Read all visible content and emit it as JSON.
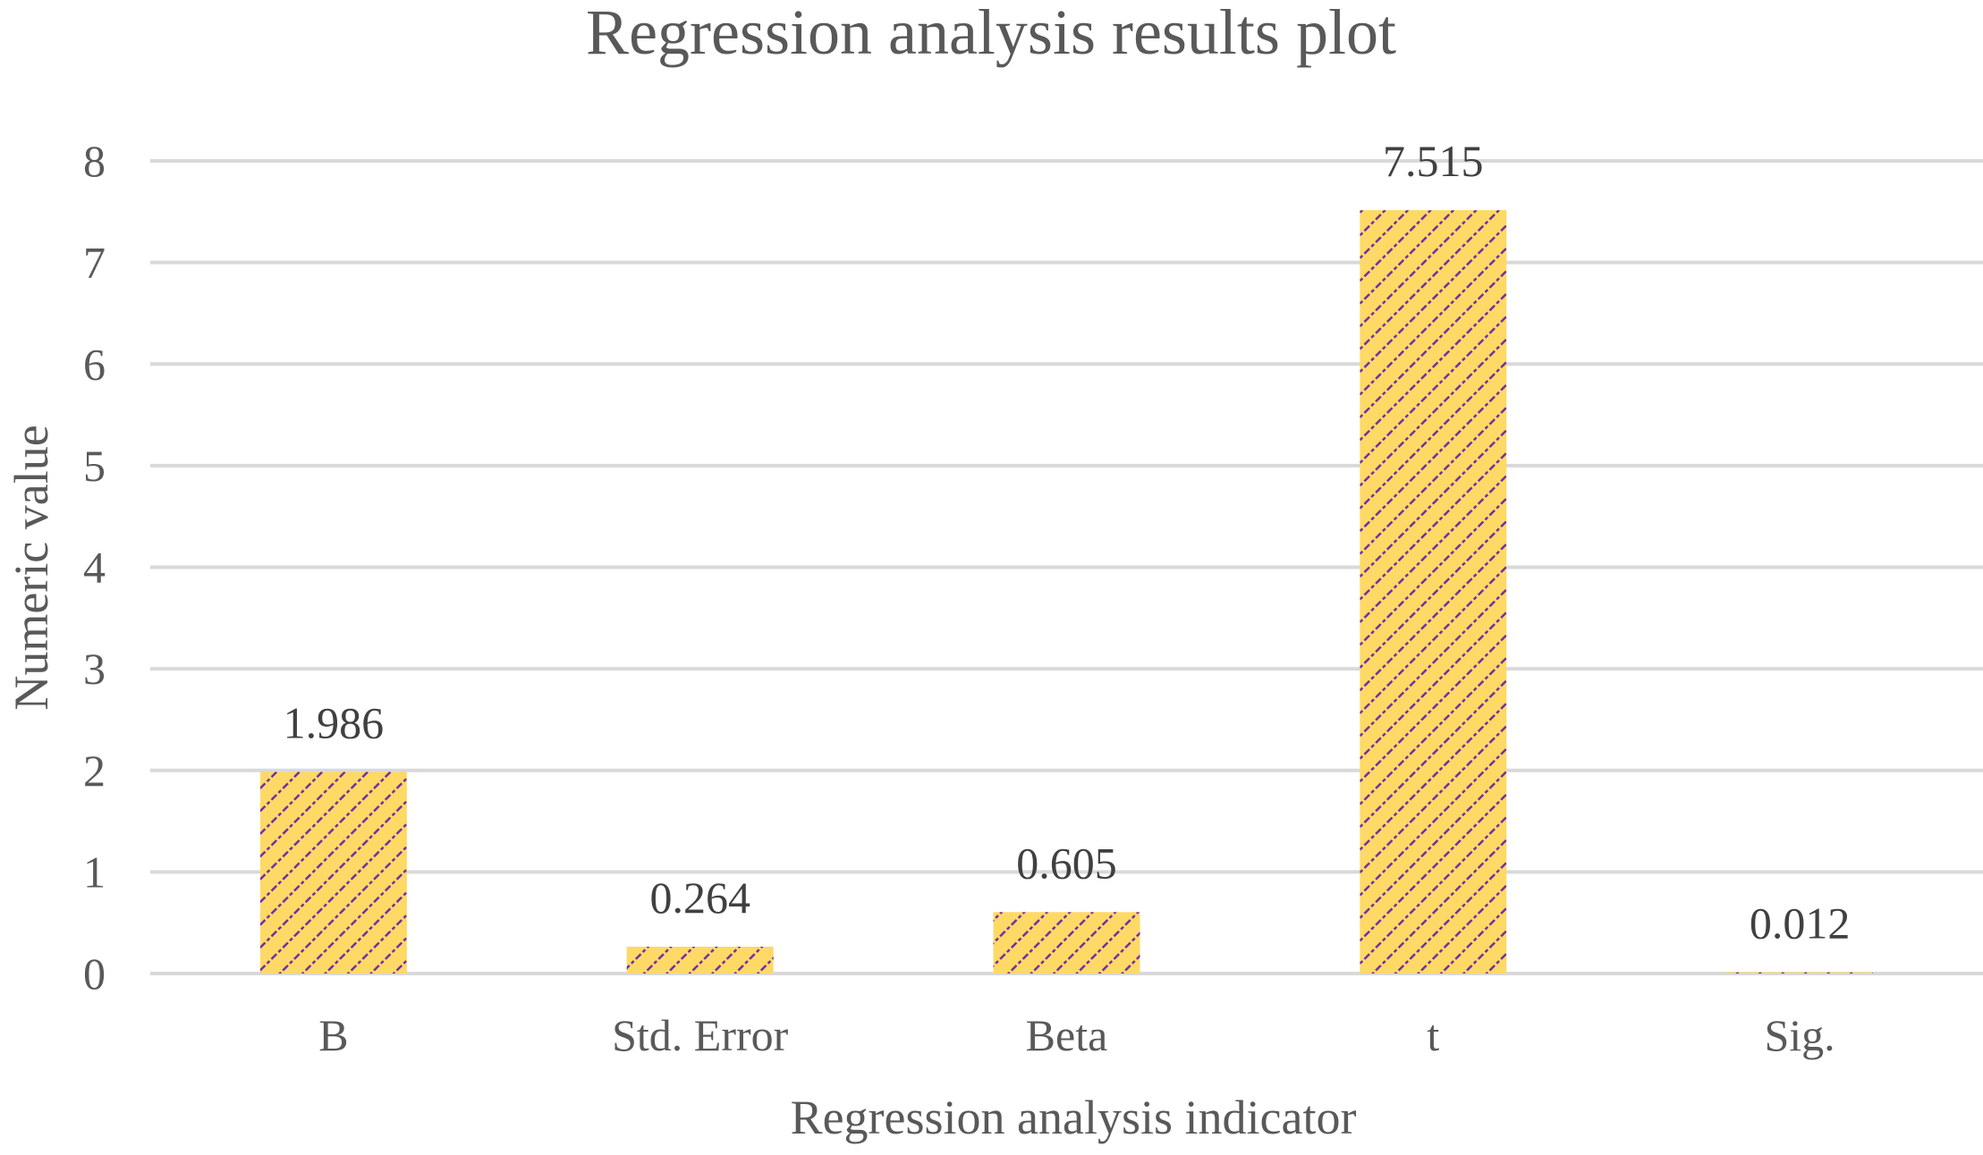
{
  "colors": {
    "bar_fill": "#FFD966",
    "bar_pattern": "#7030A0",
    "gridline": "#D9D9D9",
    "text": "#595959",
    "label_text": "#404040"
  },
  "chart_data": {
    "type": "bar",
    "title": "Regression analysis results plot",
    "xlabel": "Regression analysis indicator",
    "ylabel": "Numeric value",
    "categories": [
      "B",
      "Std. Error",
      "Beta",
      "t",
      "Sig."
    ],
    "values": [
      1.986,
      0.264,
      0.605,
      7.515,
      0.012
    ],
    "data_labels": [
      "1.986",
      "0.264",
      "0.605",
      "7.515",
      "0.012"
    ],
    "ylim": [
      0,
      8
    ],
    "yticks": [
      "0",
      "1",
      "2",
      "3",
      "4",
      "5",
      "6",
      "7",
      "8"
    ],
    "grid": true,
    "legend": false
  }
}
